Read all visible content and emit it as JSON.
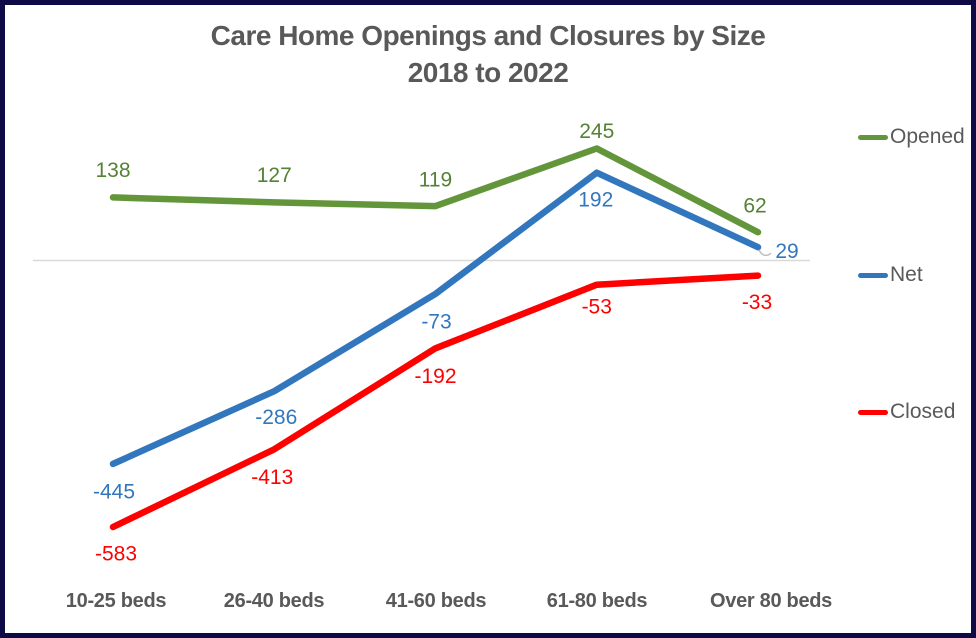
{
  "title": {
    "line1": "Care Home Openings and Closures by Size",
    "line2": "2018 to 2022"
  },
  "colors": {
    "border": "#0e0a45",
    "title_text": "#595959",
    "axis_text": "#595959",
    "gridline": "#d9d9d9",
    "leader_line": "#bfbfbf",
    "opened_line": "#63953a",
    "opened_label": "#548235",
    "net_line": "#3277bd",
    "net_label": "#3277bd",
    "closed_line": "#ff0000",
    "closed_label": "#ff0000"
  },
  "chart_data": {
    "type": "line",
    "title": "Care Home Openings and Closures by Size 2018 to 2022",
    "categories": [
      "10-25 beds",
      "26-40 beds",
      "41-60 beds",
      "61-80 beds",
      "Over 80 beds"
    ],
    "series": [
      {
        "name": "Opened",
        "values": [
          138,
          127,
          119,
          245,
          62
        ],
        "labels": [
          "138",
          "127",
          "119",
          "245",
          "62"
        ],
        "color": "#63953a",
        "label_color": "#548235"
      },
      {
        "name": "Net",
        "values": [
          -445,
          -286,
          -73,
          192,
          29
        ],
        "labels": [
          "-445",
          "-286",
          "-73",
          "192",
          "29"
        ],
        "color": "#3277bd",
        "label_color": "#3277bd"
      },
      {
        "name": "Closed",
        "values": [
          -583,
          -413,
          -192,
          -53,
          -33
        ],
        "labels": [
          "-583",
          "-413",
          "-192",
          "-53",
          "-33"
        ],
        "color": "#ff0000",
        "label_color": "#ff0000"
      }
    ],
    "xlabel": "",
    "ylabel": "",
    "ylim": [
      -650,
      320
    ],
    "grid": "single horizontal gridline at 0",
    "legend_position": "right",
    "legend_entries": [
      "Opened",
      "Net",
      "Closed"
    ]
  }
}
